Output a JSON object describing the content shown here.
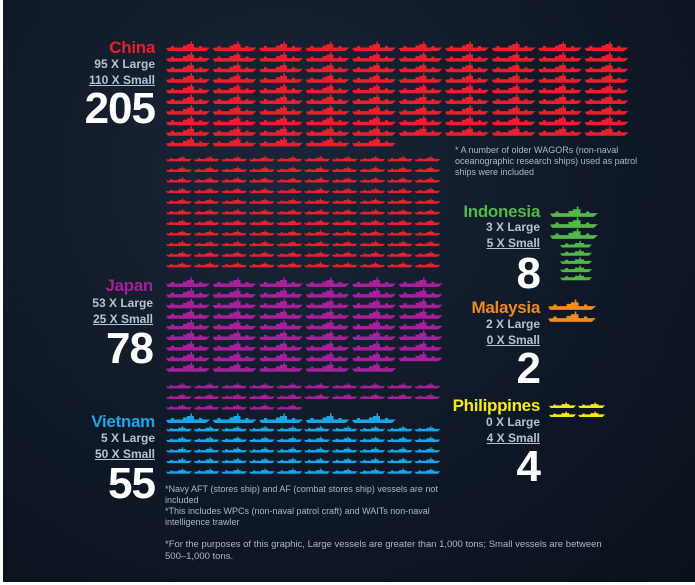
{
  "colors": {
    "china": "#e8202e",
    "japan": "#a61f9b",
    "vietnam": "#19a6e6",
    "indonesia": "#52b848",
    "malaysia": "#f08a22",
    "philippines": "#f5ea14",
    "text": "#ffffff",
    "subtext": "#b9c3cf"
  },
  "chart_data": {
    "type": "pictogram",
    "unit_note": "*For the purposes of this graphic, Large vessels are greater than 1,000 tons; Small vessels are between 500–1,000 tons.",
    "countries": [
      {
        "key": "china",
        "name": "China",
        "large_label": "95 X Large",
        "small_label": "110 X Small",
        "large": 95,
        "small": 110,
        "total": "205"
      },
      {
        "key": "japan",
        "name": "Japan",
        "large_label": "53 X Large",
        "small_label": "25 X Small",
        "large": 53,
        "small": 25,
        "total": "78"
      },
      {
        "key": "vietnam",
        "name": "Vietnam",
        "large_label": "5 X Large",
        "small_label": "50 X Small",
        "large": 5,
        "small": 50,
        "total": "55"
      },
      {
        "key": "indonesia",
        "name": "Indonesia",
        "large_label": "3 X Large",
        "small_label": "5 X Small",
        "large": 3,
        "small": 5,
        "total": "8"
      },
      {
        "key": "malaysia",
        "name": "Malaysia",
        "large_label": "2 X Large",
        "small_label": "0 X Small",
        "large": 2,
        "small": 0,
        "total": "2"
      },
      {
        "key": "philippines",
        "name": "Philippines",
        "large_label": "0 X Large",
        "small_label": "4 X Small",
        "large": 0,
        "small": 4,
        "total": "4"
      }
    ],
    "notes": {
      "china": "* A number of older WAGORs (non-naval oceanographic research ships) used as patrol ships were included",
      "vietnam_1": "*Navy AFT (stores ship) and AF (combat stores ship) vessels are not included",
      "vietnam_2": "*This includes WPCs (non-naval patrol craft) and WAITs non-naval intelligence trawler"
    }
  }
}
